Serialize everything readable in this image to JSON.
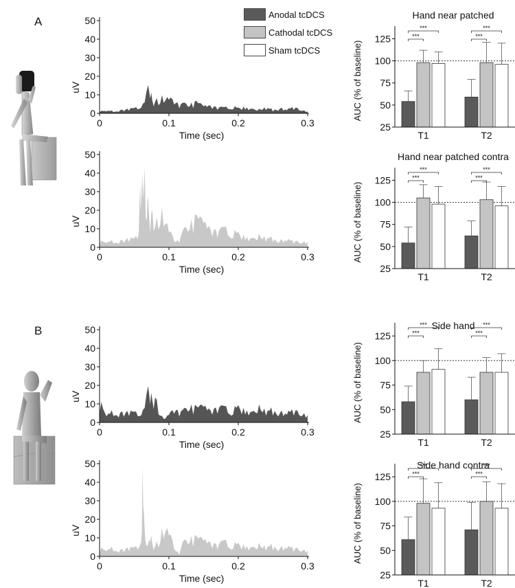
{
  "panels": [
    {
      "letter": "A"
    },
    {
      "letter": "B"
    }
  ],
  "legend": [
    {
      "label": "Anodal tcDCS",
      "color": "#5a5a5a"
    },
    {
      "label": "Cathodal tcDCS",
      "color": "#c4c4c4"
    },
    {
      "label": "Sham tcDCS",
      "color": "#ffffff"
    }
  ],
  "colors": {
    "anodal": "#5a5a5a",
    "cathodal": "#c4c4c4",
    "sham": "#ffffff",
    "outline": "#333333"
  },
  "figure_icons": [
    "seated-figure-hand-near-face-icon",
    "seated-figure-hand-at-side-icon"
  ],
  "significance_label": "***",
  "chart_data": [
    {
      "id": "trace-A-anodal",
      "type": "area",
      "series_color": "#555555",
      "xlabel": "Time (sec)",
      "ylabel": "uV",
      "xlim": [
        0,
        0.3
      ],
      "ylim": [
        0,
        50
      ],
      "xticks": [
        "0",
        "0.1",
        "0.2",
        "0.3"
      ],
      "yticks": [
        "0",
        "10",
        "20",
        "30",
        "40",
        "50"
      ],
      "x": [
        0,
        0.01,
        0.02,
        0.03,
        0.04,
        0.05,
        0.06,
        0.065,
        0.07,
        0.073,
        0.076,
        0.08,
        0.085,
        0.09,
        0.095,
        0.1,
        0.105,
        0.11,
        0.12,
        0.13,
        0.14,
        0.15,
        0.16,
        0.17,
        0.18,
        0.19,
        0.2,
        0.21,
        0.22,
        0.23,
        0.24,
        0.25,
        0.26,
        0.27,
        0.28,
        0.29,
        0.3
      ],
      "y": [
        1,
        2,
        1,
        2,
        2,
        3,
        4,
        6,
        14,
        16,
        8,
        7,
        9,
        11,
        10,
        9,
        7,
        6,
        5,
        5,
        6,
        4,
        5,
        4,
        3,
        4,
        3,
        4,
        3,
        2,
        3,
        2,
        3,
        2,
        3,
        2,
        1
      ]
    },
    {
      "id": "trace-A-cathodal",
      "type": "area",
      "series_color": "#c8c8c8",
      "xlabel": "Time (sec)",
      "ylabel": "uV",
      "xlim": [
        0,
        0.3
      ],
      "ylim": [
        0,
        50
      ],
      "xticks": [
        "0",
        "0.1",
        "0.2",
        "0.3"
      ],
      "yticks": [
        "0",
        "10",
        "20",
        "30",
        "40",
        "50"
      ],
      "x": [
        0,
        0.01,
        0.02,
        0.03,
        0.04,
        0.05,
        0.055,
        0.058,
        0.06,
        0.062,
        0.065,
        0.068,
        0.07,
        0.073,
        0.076,
        0.08,
        0.085,
        0.09,
        0.095,
        0.1,
        0.105,
        0.11,
        0.115,
        0.12,
        0.13,
        0.14,
        0.15,
        0.16,
        0.17,
        0.18,
        0.19,
        0.2,
        0.21,
        0.22,
        0.23,
        0.24,
        0.25,
        0.26,
        0.27,
        0.28,
        0.29,
        0.3
      ],
      "y": [
        3,
        4,
        3,
        4,
        4,
        5,
        7,
        28,
        48,
        35,
        44,
        20,
        25,
        15,
        23,
        12,
        20,
        24,
        18,
        10,
        6,
        3,
        5,
        8,
        13,
        16,
        14,
        12,
        11,
        10,
        9,
        8,
        7,
        6,
        6,
        5,
        5,
        4,
        4,
        3,
        3,
        3
      ]
    },
    {
      "id": "trace-B-anodal",
      "type": "area",
      "series_color": "#555555",
      "xlabel": "Time (sec)",
      "ylabel": "uV",
      "xlim": [
        0,
        0.3
      ],
      "ylim": [
        0,
        50
      ],
      "xticks": [
        "0",
        "0.1",
        "0.2",
        "0.3"
      ],
      "yticks": [
        "0",
        "10",
        "20",
        "30",
        "40",
        "50"
      ],
      "x": [
        0,
        0.01,
        0.02,
        0.03,
        0.04,
        0.05,
        0.06,
        0.065,
        0.07,
        0.073,
        0.076,
        0.08,
        0.085,
        0.09,
        0.095,
        0.1,
        0.11,
        0.12,
        0.13,
        0.14,
        0.15,
        0.16,
        0.17,
        0.18,
        0.19,
        0.2,
        0.21,
        0.22,
        0.23,
        0.24,
        0.25,
        0.26,
        0.27,
        0.28,
        0.29,
        0.3
      ],
      "y": [
        11,
        6,
        5,
        6,
        5,
        6,
        5,
        8,
        18,
        20,
        14,
        15,
        9,
        4,
        3,
        5,
        7,
        6,
        9,
        8,
        9,
        8,
        10,
        8,
        7,
        9,
        8,
        7,
        8,
        6,
        7,
        6,
        5,
        6,
        5,
        4
      ]
    },
    {
      "id": "trace-B-cathodal",
      "type": "area",
      "series_color": "#c8c8c8",
      "xlabel": "Time (sec)",
      "ylabel": "uV",
      "xlim": [
        0,
        0.3
      ],
      "ylim": [
        0,
        50
      ],
      "xticks": [
        "0",
        "0.1",
        "0.2",
        "0.3"
      ],
      "yticks": [
        "0",
        "10",
        "20",
        "30",
        "40",
        "50"
      ],
      "x": [
        0,
        0.01,
        0.02,
        0.03,
        0.04,
        0.05,
        0.055,
        0.06,
        0.062,
        0.064,
        0.066,
        0.07,
        0.073,
        0.076,
        0.08,
        0.085,
        0.09,
        0.095,
        0.1,
        0.105,
        0.11,
        0.115,
        0.12,
        0.13,
        0.14,
        0.15,
        0.16,
        0.17,
        0.18,
        0.19,
        0.2,
        0.21,
        0.22,
        0.23,
        0.24,
        0.25,
        0.26,
        0.27,
        0.28,
        0.29,
        0.3
      ],
      "y": [
        4,
        5,
        4,
        4,
        4,
        5,
        6,
        10,
        42,
        20,
        9,
        6,
        16,
        8,
        6,
        10,
        17,
        19,
        14,
        8,
        3,
        2,
        7,
        10,
        10,
        9,
        9,
        8,
        8,
        7,
        7,
        7,
        6,
        6,
        5,
        6,
        5,
        5,
        4,
        4,
        3
      ]
    },
    {
      "id": "auc-hand-near-patched",
      "type": "bar",
      "title": "Hand near patched",
      "ylabel": "AUC (% of baseline)",
      "categories": [
        "T1",
        "T2"
      ],
      "ylim": [
        25,
        130
      ],
      "yticks": [
        "25",
        "50",
        "75",
        "100",
        "125"
      ],
      "reference_line": 100,
      "series": [
        {
          "name": "Anodal tcDCS",
          "values": [
            54,
            59
          ],
          "errors": [
            12,
            20
          ]
        },
        {
          "name": "Cathodal tcDCS",
          "values": [
            98,
            98
          ],
          "errors": [
            14,
            23
          ]
        },
        {
          "name": "Sham tcDCS",
          "values": [
            97,
            96
          ],
          "errors": [
            13,
            24
          ]
        }
      ],
      "significance": [
        "***",
        "***",
        "***",
        "***"
      ]
    },
    {
      "id": "auc-hand-near-patched-contra",
      "type": "bar",
      "title": "Hand near patched contra",
      "ylabel": "AUC (% of baseline)",
      "categories": [
        "T1",
        "T2"
      ],
      "ylim": [
        25,
        130
      ],
      "yticks": [
        "25",
        "50",
        "75",
        "100",
        "125"
      ],
      "reference_line": 100,
      "series": [
        {
          "name": "Anodal tcDCS",
          "values": [
            54,
            62
          ],
          "errors": [
            18,
            17
          ]
        },
        {
          "name": "Cathodal tcDCS",
          "values": [
            105,
            103
          ],
          "errors": [
            15,
            20
          ]
        },
        {
          "name": "Sham tcDCS",
          "values": [
            98,
            96
          ],
          "errors": [
            20,
            22
          ]
        }
      ],
      "significance": [
        "***",
        "***",
        "***",
        "***"
      ]
    },
    {
      "id": "auc-side-hand",
      "type": "bar",
      "title": "Side hand",
      "ylabel": "AUC (% of baseline)",
      "categories": [
        "T1",
        "T2"
      ],
      "ylim": [
        25,
        130
      ],
      "yticks": [
        "25",
        "50",
        "75",
        "100",
        "125"
      ],
      "reference_line": 100,
      "series": [
        {
          "name": "Anodal tcDCS",
          "values": [
            58,
            60
          ],
          "errors": [
            16,
            23
          ]
        },
        {
          "name": "Cathodal tcDCS",
          "values": [
            88,
            88
          ],
          "errors": [
            12,
            15
          ]
        },
        {
          "name": "Sham tcDCS",
          "values": [
            91,
            88
          ],
          "errors": [
            21,
            19
          ]
        }
      ],
      "significance": [
        "***",
        "***",
        "***",
        "***"
      ]
    },
    {
      "id": "auc-side-hand-contra",
      "type": "bar",
      "title": "Side hand contra",
      "ylabel": "AUC (% of baseline)",
      "categories": [
        "T1",
        "T2"
      ],
      "ylim": [
        25,
        130
      ],
      "yticks": [
        "25",
        "50",
        "75",
        "100",
        "125"
      ],
      "reference_line": 100,
      "series": [
        {
          "name": "Anodal tcDCS",
          "values": [
            61,
            71
          ],
          "errors": [
            23,
            28
          ]
        },
        {
          "name": "Cathodal tcDCS",
          "values": [
            98,
            100
          ],
          "errors": [
            25,
            20
          ]
        },
        {
          "name": "Sham tcDCS",
          "values": [
            93,
            93
          ],
          "errors": [
            26,
            25
          ]
        }
      ],
      "significance": [
        "***",
        "***",
        "***",
        "***"
      ]
    }
  ]
}
